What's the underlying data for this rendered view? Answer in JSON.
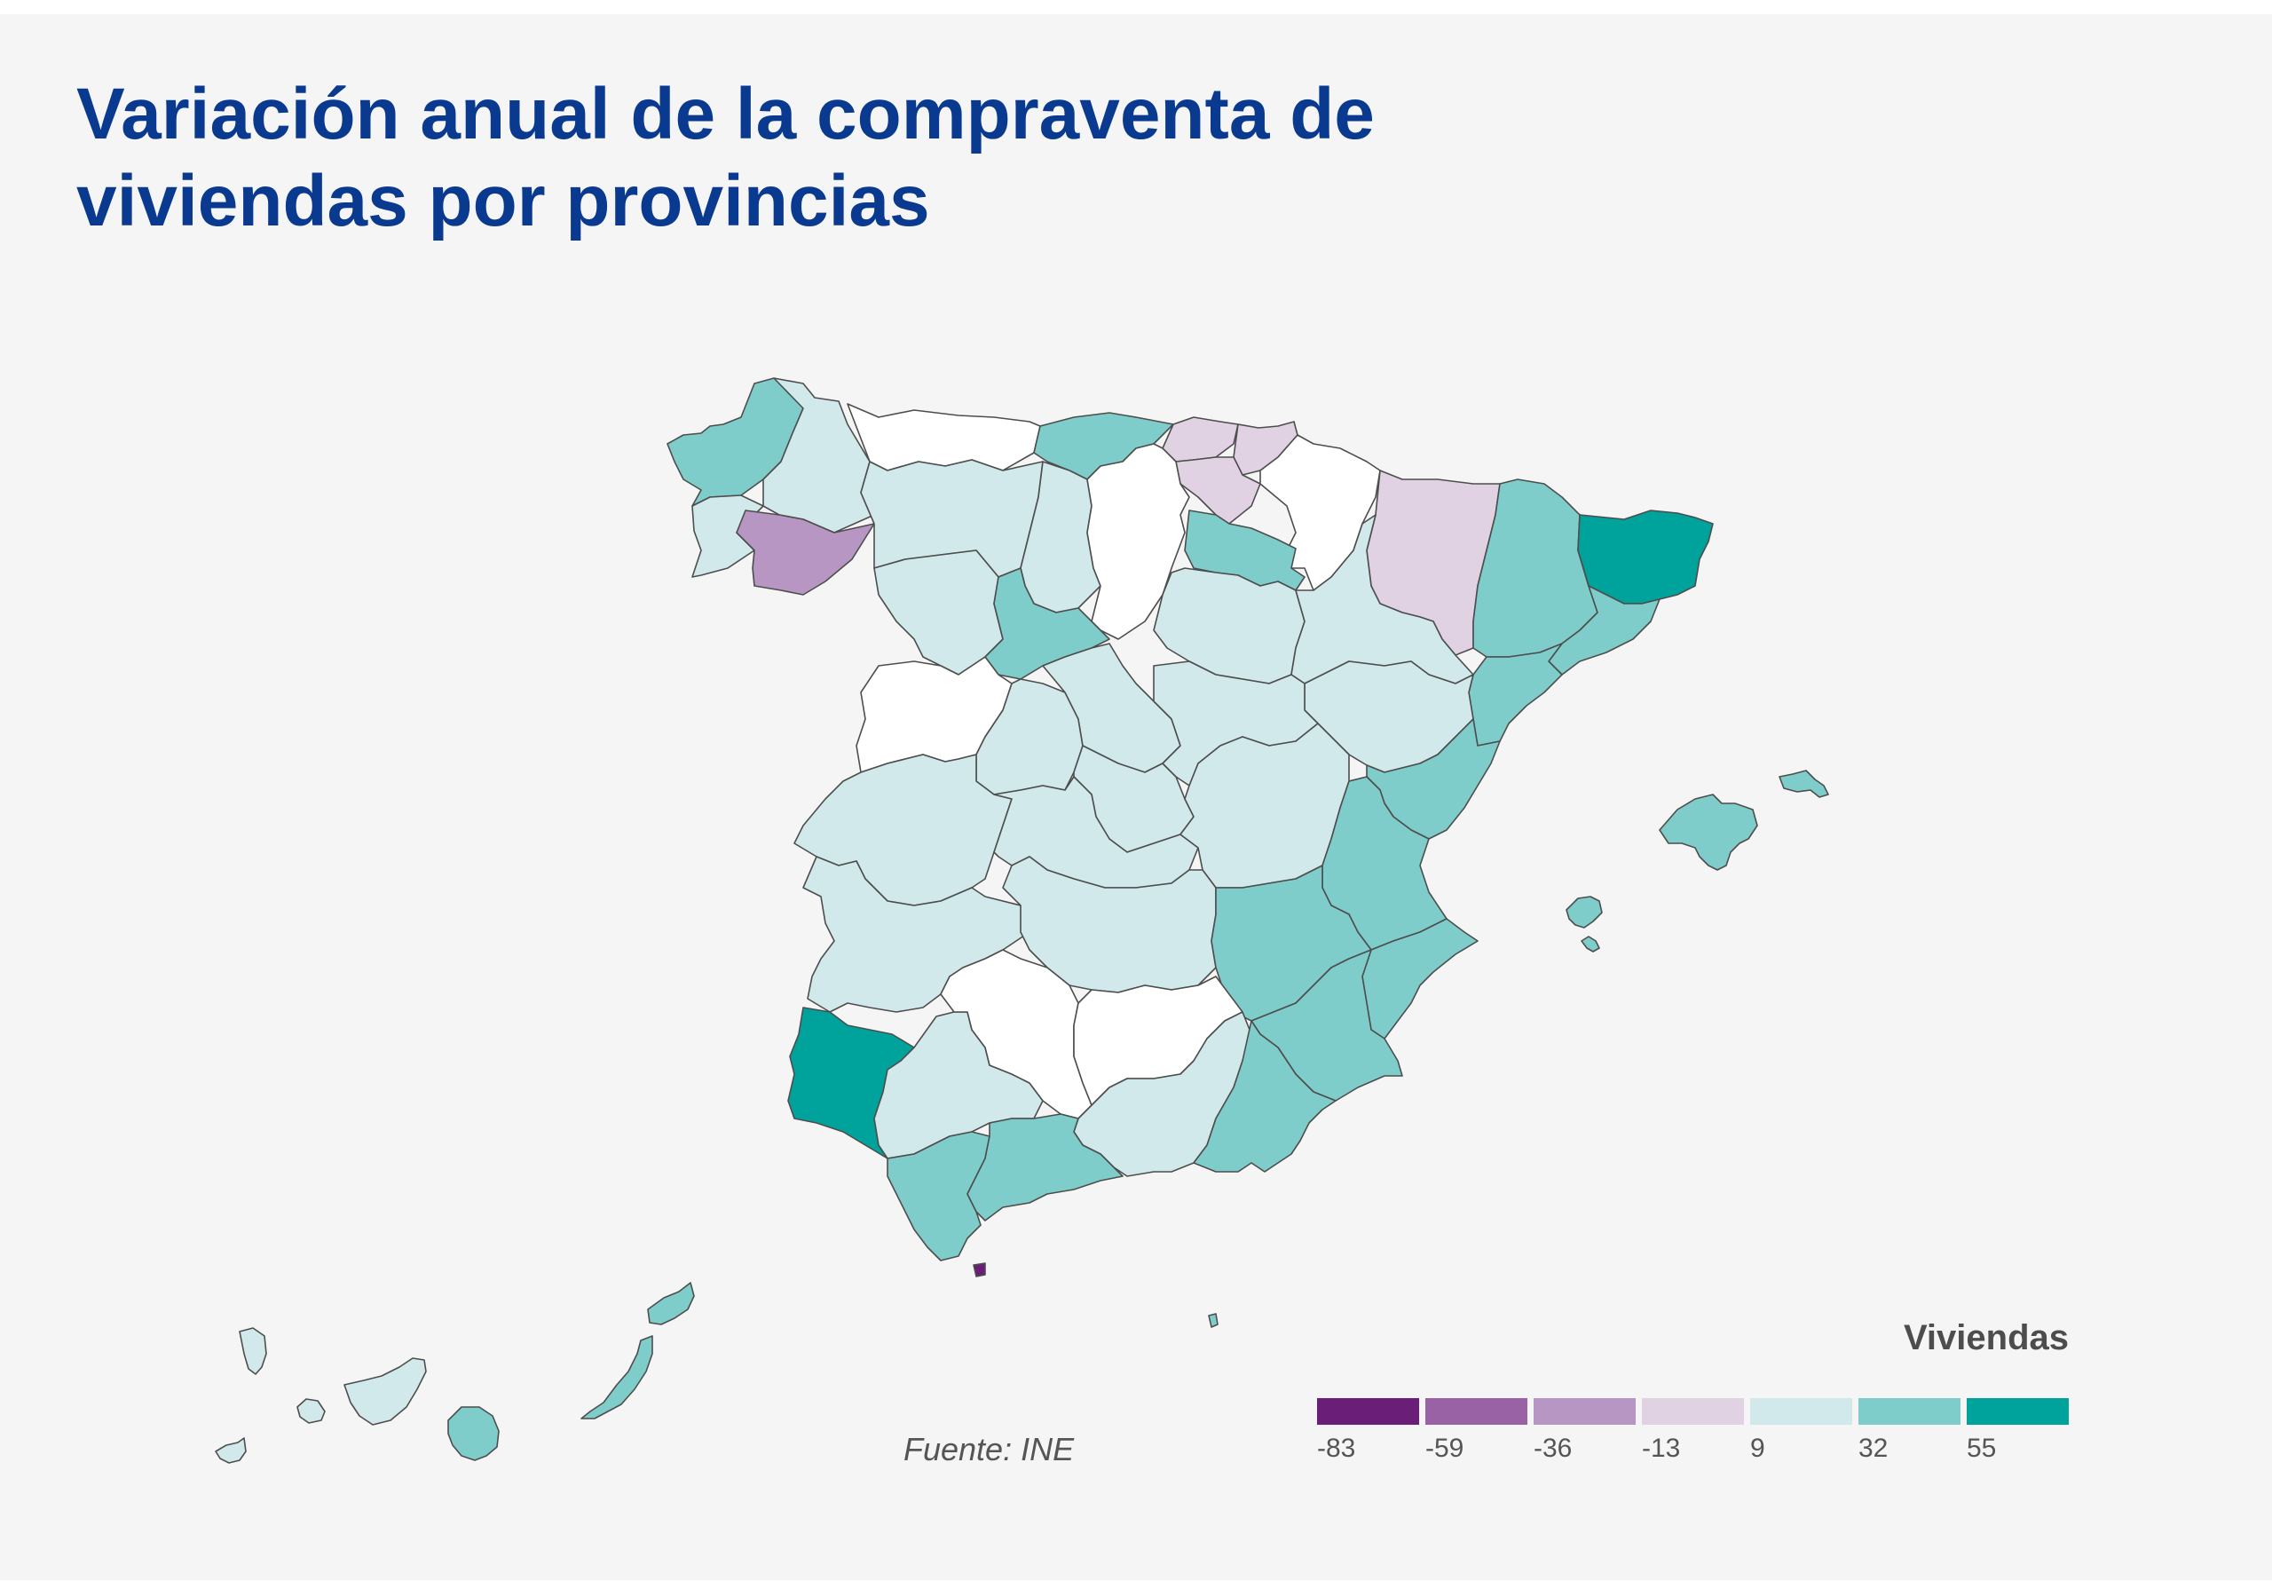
{
  "title_lines": [
    "Variación anual de la compraventa de",
    "viviendas por provincias"
  ],
  "source": "Fuente: INE",
  "legend": {
    "title": "Viviendas",
    "ticks": [
      "-83",
      "-59",
      "-36",
      "-13",
      "9",
      "32",
      "55"
    ],
    "colors": [
      "#6b1e78",
      "#9962a5",
      "#b896c3",
      "#e0d2e2",
      "#d1e9ea",
      "#7fcdca",
      "#00a29c"
    ]
  },
  "colors": {
    "no_data": "#ffffff",
    "title": "#0a3a8f",
    "background": "#f5f5f5"
  },
  "provinces": [
    {
      "name": "A Coruña",
      "class": 5
    },
    {
      "name": "Lugo",
      "class": 4
    },
    {
      "name": "Pontevedra",
      "class": 4
    },
    {
      "name": "Ourense",
      "class": 2
    },
    {
      "name": "Asturias",
      "class": -1
    },
    {
      "name": "Cantabria",
      "class": 5
    },
    {
      "name": "Bizkaia",
      "class": 3
    },
    {
      "name": "Gipuzkoa",
      "class": 3
    },
    {
      "name": "Araba/Álava",
      "class": 3
    },
    {
      "name": "Navarra",
      "class": -1
    },
    {
      "name": "León",
      "class": 4
    },
    {
      "name": "Palencia",
      "class": 4
    },
    {
      "name": "Burgos",
      "class": -1
    },
    {
      "name": "La Rioja",
      "class": 5
    },
    {
      "name": "Zamora",
      "class": 4
    },
    {
      "name": "Valladolid",
      "class": 5
    },
    {
      "name": "Soria",
      "class": 4
    },
    {
      "name": "Huesca",
      "class": 3
    },
    {
      "name": "Lleida",
      "class": 5
    },
    {
      "name": "Girona",
      "class": 6
    },
    {
      "name": "Barcelona",
      "class": 5
    },
    {
      "name": "Tarragona",
      "class": 5
    },
    {
      "name": "Zaragoza",
      "class": 4
    },
    {
      "name": "Teruel",
      "class": 4
    },
    {
      "name": "Salamanca",
      "class": -1
    },
    {
      "name": "Ávila",
      "class": 4
    },
    {
      "name": "Segovia",
      "class": 4
    },
    {
      "name": "Madrid",
      "class": 4
    },
    {
      "name": "Guadalajara",
      "class": 4
    },
    {
      "name": "Cáceres",
      "class": 4
    },
    {
      "name": "Toledo",
      "class": 4
    },
    {
      "name": "Cuenca",
      "class": 4
    },
    {
      "name": "Castellón",
      "class": 5
    },
    {
      "name": "Valencia",
      "class": 5
    },
    {
      "name": "Badajoz",
      "class": 4
    },
    {
      "name": "Ciudad Real",
      "class": 4
    },
    {
      "name": "Albacete",
      "class": 5
    },
    {
      "name": "Alicante",
      "class": 5
    },
    {
      "name": "Murcia",
      "class": 5
    },
    {
      "name": "Huelva",
      "class": 6
    },
    {
      "name": "Sevilla",
      "class": 4
    },
    {
      "name": "Córdoba",
      "class": -1
    },
    {
      "name": "Jaén",
      "class": -1
    },
    {
      "name": "Granada",
      "class": 4
    },
    {
      "name": "Almería",
      "class": 5
    },
    {
      "name": "Cádiz",
      "class": 5
    },
    {
      "name": "Málaga",
      "class": 5
    },
    {
      "name": "Mallorca",
      "class": 5
    },
    {
      "name": "Menorca",
      "class": 5
    },
    {
      "name": "Ibiza",
      "class": 5
    },
    {
      "name": "Formentera",
      "class": 5
    },
    {
      "name": "Ceuta",
      "class": 0
    },
    {
      "name": "Melilla",
      "class": 5
    },
    {
      "name": "La Palma",
      "class": 4
    },
    {
      "name": "El Hierro",
      "class": 4
    },
    {
      "name": "La Gomera",
      "class": 4
    },
    {
      "name": "Tenerife",
      "class": 4
    },
    {
      "name": "Gran Canaria",
      "class": 5
    },
    {
      "name": "Fuerteventura",
      "class": 5
    },
    {
      "name": "Lanzarote",
      "class": 5
    }
  ]
}
